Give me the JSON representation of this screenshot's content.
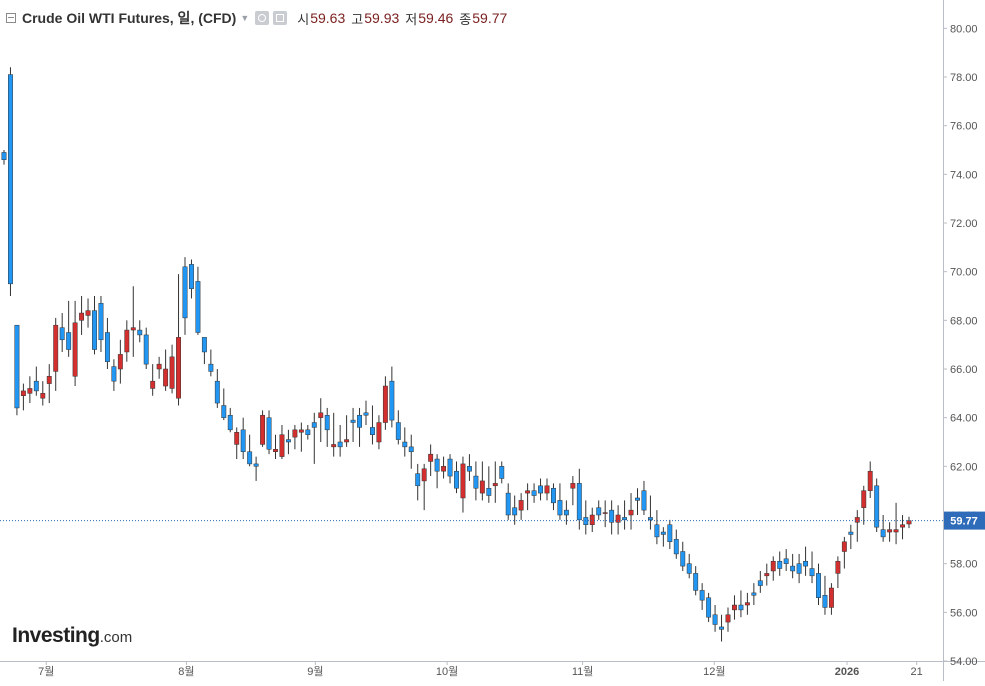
{
  "legend": {
    "title": "Crude Oil WTI Futures, 일, (CFD)",
    "open_label": "시",
    "open": "59.63",
    "high_label": "고",
    "high": "59.93",
    "low_label": "저",
    "low": "59.46",
    "close_label": "종",
    "close": "59.77",
    "icons": [
      "collapse-icon",
      "dropdown-caret-icon",
      "eye-icon",
      "settings-icon"
    ]
  },
  "logo": {
    "brand": "Investing",
    "suffix": ".com"
  },
  "colors": {
    "up": "#d32f2f",
    "down": "#2196f3",
    "price_line": "#2e6bb8",
    "price_badge": "#2e6bb8",
    "grid": "#e9edf2"
  },
  "chart_data": {
    "type": "candlestick",
    "title": "Crude Oil WTI Futures, 일, (CFD)",
    "ylim": [
      54,
      81
    ],
    "y_ticks": [
      "54.00",
      "56.00",
      "58.00",
      "60.00",
      "62.00",
      "64.00",
      "66.00",
      "68.00",
      "70.00",
      "72.00",
      "74.00",
      "76.00",
      "78.00",
      "80.00"
    ],
    "x_ticks": [
      "7월",
      "8월",
      "9월",
      "10월",
      "11월",
      "12월",
      "2026",
      "21"
    ],
    "last_price": "59.77",
    "candles": [
      [
        74.9,
        75.0,
        74.4,
        74.6
      ],
      [
        78.1,
        78.4,
        69.0,
        69.5
      ],
      [
        67.8,
        67.8,
        64.1,
        64.4
      ],
      [
        64.9,
        65.4,
        64.3,
        65.1
      ],
      [
        65.0,
        65.7,
        64.6,
        65.2
      ],
      [
        65.5,
        66.1,
        64.9,
        65.1
      ],
      [
        64.8,
        65.5,
        64.5,
        65.0
      ],
      [
        65.4,
        66.2,
        64.6,
        65.7
      ],
      [
        65.9,
        68.1,
        65.1,
        67.8
      ],
      [
        67.7,
        68.3,
        66.7,
        67.2
      ],
      [
        67.5,
        68.8,
        66.5,
        66.8
      ],
      [
        65.7,
        68.8,
        65.3,
        67.9
      ],
      [
        68.0,
        69.0,
        67.4,
        68.3
      ],
      [
        68.2,
        68.9,
        67.7,
        68.4
      ],
      [
        68.4,
        69.0,
        66.6,
        66.8
      ],
      [
        68.7,
        69.0,
        66.7,
        67.2
      ],
      [
        67.5,
        68.1,
        66.0,
        66.3
      ],
      [
        66.1,
        66.4,
        65.1,
        65.5
      ],
      [
        66.0,
        67.2,
        65.4,
        66.6
      ],
      [
        66.7,
        68.0,
        66.3,
        67.6
      ],
      [
        67.6,
        69.4,
        66.5,
        67.7
      ],
      [
        67.6,
        68.0,
        67.1,
        67.4
      ],
      [
        67.4,
        67.7,
        66.0,
        66.2
      ],
      [
        65.2,
        66.2,
        64.9,
        65.5
      ],
      [
        66.0,
        66.5,
        65.6,
        66.2
      ],
      [
        65.3,
        66.8,
        65.1,
        66.0
      ],
      [
        65.2,
        67.0,
        65.0,
        66.5
      ],
      [
        64.8,
        69.9,
        64.5,
        67.3
      ],
      [
        70.2,
        70.6,
        67.4,
        68.1
      ],
      [
        70.3,
        70.5,
        68.9,
        69.3
      ],
      [
        69.6,
        70.2,
        67.4,
        67.5
      ],
      [
        67.3,
        67.3,
        66.2,
        66.7
      ],
      [
        66.2,
        66.8,
        65.7,
        65.9
      ],
      [
        65.5,
        66.0,
        64.4,
        64.6
      ],
      [
        64.5,
        65.2,
        63.9,
        64.0
      ],
      [
        64.1,
        64.4,
        63.4,
        63.5
      ],
      [
        62.9,
        63.6,
        62.3,
        63.4
      ],
      [
        63.5,
        64.0,
        62.3,
        62.6
      ],
      [
        62.6,
        63.3,
        62.0,
        62.1
      ],
      [
        62.1,
        62.4,
        61.4,
        62.0
      ],
      [
        62.9,
        64.3,
        62.8,
        64.1
      ],
      [
        64.0,
        64.3,
        62.5,
        62.7
      ],
      [
        62.6,
        63.3,
        62.3,
        62.7
      ],
      [
        62.4,
        63.7,
        62.3,
        63.3
      ],
      [
        63.1,
        63.5,
        62.5,
        63.0
      ],
      [
        63.2,
        63.7,
        62.7,
        63.5
      ],
      [
        63.4,
        63.8,
        62.6,
        63.5
      ],
      [
        63.5,
        63.7,
        63.1,
        63.3
      ],
      [
        63.8,
        64.2,
        62.1,
        63.6
      ],
      [
        64.0,
        64.8,
        63.0,
        64.2
      ],
      [
        64.1,
        64.4,
        62.8,
        63.5
      ],
      [
        62.8,
        64.2,
        62.4,
        62.9
      ],
      [
        63.0,
        63.7,
        62.4,
        62.8
      ],
      [
        63.0,
        64.1,
        62.8,
        63.1
      ],
      [
        63.9,
        64.4,
        63.0,
        63.8
      ],
      [
        64.1,
        64.4,
        62.8,
        63.6
      ],
      [
        64.2,
        64.7,
        63.7,
        64.1
      ],
      [
        63.6,
        64.5,
        62.9,
        63.3
      ],
      [
        63.0,
        64.1,
        62.7,
        63.8
      ],
      [
        63.8,
        65.7,
        63.5,
        65.3
      ],
      [
        65.5,
        66.1,
        63.6,
        63.9
      ],
      [
        63.8,
        64.3,
        62.9,
        63.1
      ],
      [
        63.0,
        63.6,
        62.4,
        62.8
      ],
      [
        62.8,
        63.3,
        61.9,
        62.6
      ],
      [
        61.7,
        62.1,
        60.6,
        61.2
      ],
      [
        61.4,
        62.1,
        60.2,
        61.9
      ],
      [
        62.2,
        62.9,
        61.6,
        62.5
      ],
      [
        62.3,
        62.5,
        61.1,
        61.8
      ],
      [
        61.8,
        62.4,
        61.5,
        62.0
      ],
      [
        62.3,
        62.5,
        61.3,
        61.6
      ],
      [
        61.8,
        62.2,
        60.9,
        61.1
      ],
      [
        60.7,
        62.4,
        60.1,
        62.1
      ],
      [
        62.0,
        62.5,
        61.4,
        61.8
      ],
      [
        61.6,
        62.2,
        60.6,
        61.1
      ],
      [
        60.9,
        62.2,
        60.6,
        61.4
      ],
      [
        61.1,
        62.0,
        60.5,
        60.8
      ],
      [
        61.2,
        62.2,
        60.5,
        61.3
      ],
      [
        62.0,
        62.2,
        61.3,
        61.5
      ],
      [
        60.9,
        61.3,
        59.8,
        60.0
      ],
      [
        60.3,
        60.8,
        59.6,
        60.0
      ],
      [
        60.2,
        60.9,
        59.8,
        60.6
      ],
      [
        60.9,
        61.3,
        60.2,
        61.0
      ],
      [
        61.0,
        61.3,
        60.5,
        60.8
      ],
      [
        61.2,
        61.5,
        60.6,
        60.9
      ],
      [
        60.9,
        61.5,
        60.6,
        61.2
      ],
      [
        61.1,
        61.3,
        60.2,
        60.5
      ],
      [
        60.6,
        61.3,
        59.8,
        60.0
      ],
      [
        60.2,
        60.6,
        59.6,
        60.0
      ],
      [
        61.1,
        61.6,
        60.4,
        61.3
      ],
      [
        61.3,
        61.9,
        59.4,
        59.8
      ],
      [
        59.9,
        60.6,
        59.2,
        59.6
      ],
      [
        59.6,
        60.3,
        59.3,
        60.0
      ],
      [
        60.3,
        60.6,
        59.8,
        60.0
      ],
      [
        60.1,
        60.6,
        59.5,
        60.1
      ],
      [
        60.2,
        60.6,
        59.2,
        59.7
      ],
      [
        59.7,
        60.4,
        59.2,
        60.0
      ],
      [
        59.9,
        60.6,
        59.4,
        59.8
      ],
      [
        60.0,
        60.9,
        59.4,
        60.2
      ],
      [
        60.7,
        61.1,
        60.0,
        60.6
      ],
      [
        61.0,
        61.4,
        60.0,
        60.2
      ],
      [
        59.9,
        60.8,
        59.4,
        59.8
      ],
      [
        59.6,
        60.2,
        58.8,
        59.1
      ],
      [
        59.3,
        59.5,
        58.7,
        59.2
      ],
      [
        59.6,
        59.8,
        58.6,
        58.9
      ],
      [
        59.0,
        59.4,
        58.2,
        58.4
      ],
      [
        58.5,
        58.9,
        57.7,
        57.9
      ],
      [
        58.0,
        58.4,
        57.4,
        57.6
      ],
      [
        57.6,
        57.9,
        56.7,
        56.9
      ],
      [
        56.9,
        57.2,
        56.1,
        56.5
      ],
      [
        56.6,
        56.8,
        55.6,
        55.8
      ],
      [
        55.9,
        56.3,
        55.2,
        55.5
      ],
      [
        55.4,
        55.9,
        54.8,
        55.3
      ],
      [
        55.6,
        56.2,
        55.2,
        55.9
      ],
      [
        56.1,
        56.7,
        55.7,
        56.3
      ],
      [
        56.3,
        56.9,
        55.8,
        56.1
      ],
      [
        56.3,
        56.8,
        55.9,
        56.4
      ],
      [
        56.8,
        57.2,
        56.3,
        56.7
      ],
      [
        57.3,
        57.7,
        56.8,
        57.1
      ],
      [
        57.5,
        58.0,
        57.1,
        57.6
      ],
      [
        57.7,
        58.3,
        57.3,
        58.1
      ],
      [
        58.1,
        58.5,
        57.5,
        57.8
      ],
      [
        58.2,
        58.6,
        57.7,
        58.0
      ],
      [
        57.9,
        58.4,
        57.4,
        57.7
      ],
      [
        58.0,
        58.4,
        57.2,
        57.6
      ],
      [
        58.1,
        58.7,
        57.5,
        57.9
      ],
      [
        57.8,
        58.5,
        57.2,
        57.5
      ],
      [
        57.6,
        58.0,
        56.3,
        56.6
      ],
      [
        56.7,
        57.5,
        55.9,
        56.2
      ],
      [
        56.2,
        57.2,
        55.9,
        57.0
      ],
      [
        57.6,
        58.3,
        57.0,
        58.1
      ],
      [
        58.5,
        59.1,
        57.8,
        58.9
      ],
      [
        59.3,
        59.6,
        58.6,
        59.2
      ],
      [
        59.7,
        60.2,
        58.9,
        59.9
      ],
      [
        60.3,
        61.2,
        59.6,
        61.0
      ],
      [
        61.0,
        62.2,
        60.7,
        61.8
      ],
      [
        61.2,
        61.5,
        59.3,
        59.5
      ],
      [
        59.4,
        60.0,
        58.9,
        59.1
      ],
      [
        59.3,
        59.7,
        58.9,
        59.4
      ],
      [
        59.3,
        60.5,
        58.8,
        59.4
      ],
      [
        59.5,
        60.0,
        59.0,
        59.6
      ],
      [
        59.63,
        59.93,
        59.46,
        59.77
      ]
    ]
  }
}
